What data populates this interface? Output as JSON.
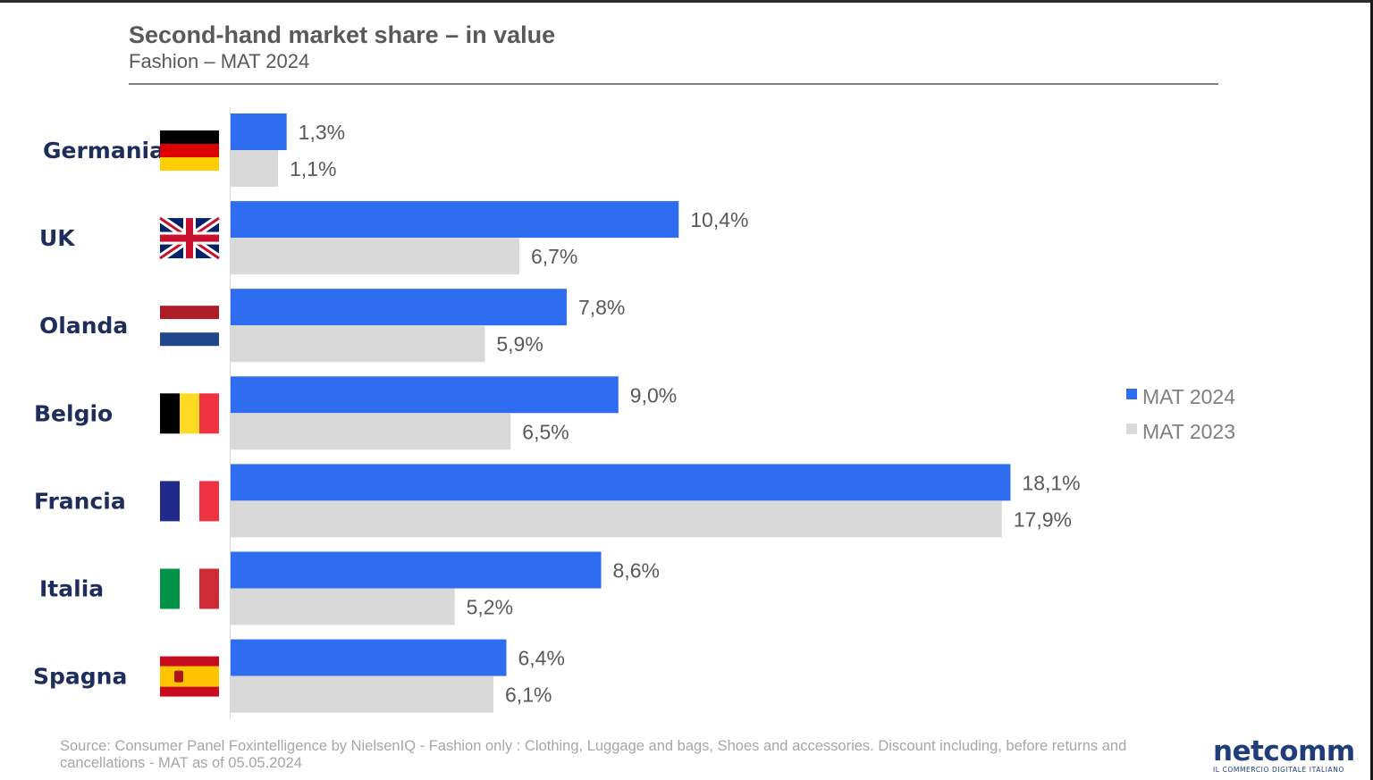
{
  "title": "Second-hand market share – in value",
  "subtitle": "Fashion – MAT 2024",
  "chart_data": {
    "type": "bar",
    "orientation": "horizontal",
    "categories": [
      "Germania",
      "UK",
      "Olanda",
      "Belgio",
      "Francia",
      "Italia",
      "Spagna"
    ],
    "flags": [
      "germany-flag",
      "uk-flag",
      "netherlands-flag",
      "belgium-flag",
      "france-flag",
      "italy-flag",
      "spain-flag"
    ],
    "series": [
      {
        "name": "MAT 2024",
        "color": "#2f6df0",
        "values": [
          1.3,
          10.4,
          7.8,
          9.0,
          18.1,
          8.6,
          6.4
        ],
        "labels": [
          "1,3%",
          "10,4%",
          "7,8%",
          "9,0%",
          "18,1%",
          "8,6%",
          "6,4%"
        ]
      },
      {
        "name": "MAT 2023",
        "color": "#d9d9d9",
        "values": [
          1.1,
          6.7,
          5.9,
          6.5,
          17.9,
          5.2,
          6.1
        ],
        "labels": [
          "1,1%",
          "6,7%",
          "5,9%",
          "6,5%",
          "17,9%",
          "5,2%",
          "6,1%"
        ]
      }
    ],
    "legend_labels": [
      "MAT 2024",
      "MAT 2023"
    ],
    "legend_position": "right",
    "xlim": [
      0,
      20
    ],
    "grid": false
  },
  "footer": {
    "source": "Source: Consumer Panel Foxintelligence by NielsenIQ - Fashion only : Clothing, Luggage and bags, Shoes and accessories. Discount including, before returns and cancellations  -  MAT as of 05.05.2024"
  },
  "logo": {
    "name": "netcomm",
    "tagline": "IL COMMERCIO DIGITALE ITALIANO"
  }
}
